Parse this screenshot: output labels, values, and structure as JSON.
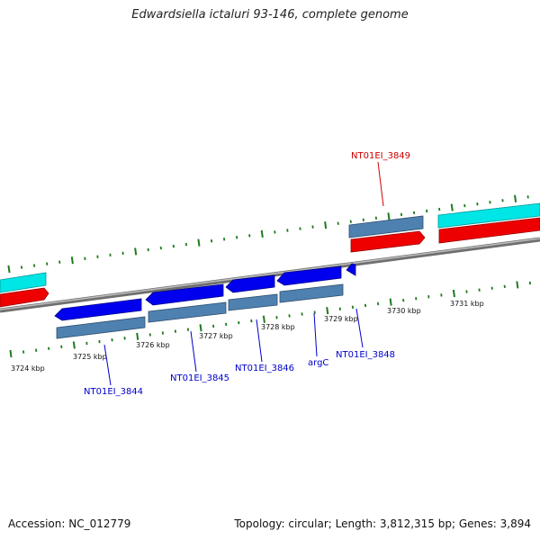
{
  "title": "Edwardsiella ictaluri 93-146, complete genome",
  "footer": {
    "accession": "Accession: NC_012779",
    "summary": "Topology: circular; Length: 3,812,315 bp; Genes: 3,894"
  },
  "colors": {
    "background": "#ffffff",
    "backbone": "#7f7f7f",
    "tick": "#1f7a1f",
    "gene_blue": "#0000ee",
    "gene_steel": "#4f81b0",
    "gene_red": "#ee0000",
    "gene_cyan": "#00eeee",
    "label_blue": "#0000cc",
    "label_red": "#cc0000"
  },
  "scale_labels": [
    "3724 kbp",
    "3725 kbp",
    "3726 kbp",
    "3727 kbp",
    "3728 kbp",
    "3729 kbp",
    "3730 kbp",
    "3731 kbp"
  ],
  "gene_labels": [
    {
      "text": "NT01EI_3844",
      "color": "blue"
    },
    {
      "text": "NT01EI_3845",
      "color": "blue"
    },
    {
      "text": "NT01EI_3846",
      "color": "blue"
    },
    {
      "text": "argC",
      "color": "blue"
    },
    {
      "text": "NT01EI_3848",
      "color": "blue"
    },
    {
      "text": "NT01EI_3849",
      "color": "red"
    }
  ]
}
